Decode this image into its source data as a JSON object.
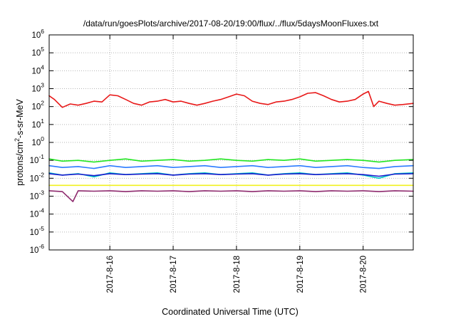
{
  "chart_data": {
    "type": "line",
    "title": "/data/run/goesPlots/archive/2017-08-20/19:00/flux/../flux/5daysMoonFluxes.txt",
    "xlabel": "Coordinated Universal Time (UTC)",
    "ylabel": "protons/cm²-s-sr-MeV",
    "ylabel_parts": {
      "pre": "protons/cm",
      "sup": "2",
      "post": "-s-sr-MeV"
    },
    "xlim": [
      "2017-08-15T01:00",
      "2017-08-20T19:00"
    ],
    "ylim": [
      1e-06,
      1000000.0
    ],
    "yscale": "log",
    "grid": true,
    "x_ticks": [
      {
        "date": "2017-08-16T00:00",
        "label": "2017-8-16"
      },
      {
        "date": "2017-08-17T00:00",
        "label": "2017-8-17"
      },
      {
        "date": "2017-08-18T00:00",
        "label": "2017-8-18"
      },
      {
        "date": "2017-08-19T00:00",
        "label": "2017-8-19"
      },
      {
        "date": "2017-08-20T00:00",
        "label": "2017-8-20"
      }
    ],
    "y_ticks": [
      {
        "exp": -6,
        "label": "10",
        "sup": "-6"
      },
      {
        "exp": -5,
        "label": "10",
        "sup": "-5"
      },
      {
        "exp": -4,
        "label": "10",
        "sup": "-4"
      },
      {
        "exp": -3,
        "label": "10",
        "sup": "-3"
      },
      {
        "exp": -2,
        "label": "10",
        "sup": "-2"
      },
      {
        "exp": -1,
        "label": "10",
        "sup": "-1"
      },
      {
        "exp": 0,
        "label": "10",
        "sup": "0"
      },
      {
        "exp": 1,
        "label": "10",
        "sup": "1"
      },
      {
        "exp": 2,
        "label": "10",
        "sup": "2"
      },
      {
        "exp": 3,
        "label": "10",
        "sup": "3"
      },
      {
        "exp": 4,
        "label": "10",
        "sup": "4"
      },
      {
        "exp": 5,
        "label": "10",
        "sup": "5"
      },
      {
        "exp": 6,
        "label": "10",
        "sup": "6"
      }
    ],
    "series": [
      {
        "color": "#e81919",
        "x": [
          "2017-08-15T01:00",
          "2017-08-15T03:00",
          "2017-08-15T06:00",
          "2017-08-15T09:00",
          "2017-08-15T12:00",
          "2017-08-15T15:00",
          "2017-08-15T18:00",
          "2017-08-15T21:00",
          "2017-08-16T00:00",
          "2017-08-16T03:00",
          "2017-08-16T06:00",
          "2017-08-16T09:00",
          "2017-08-16T12:00",
          "2017-08-16T15:00",
          "2017-08-16T18:00",
          "2017-08-16T21:00",
          "2017-08-17T00:00",
          "2017-08-17T03:00",
          "2017-08-17T06:00",
          "2017-08-17T09:00",
          "2017-08-17T12:00",
          "2017-08-17T15:00",
          "2017-08-17T18:00",
          "2017-08-17T21:00",
          "2017-08-18T00:00",
          "2017-08-18T03:00",
          "2017-08-18T06:00",
          "2017-08-18T09:00",
          "2017-08-18T12:00",
          "2017-08-18T15:00",
          "2017-08-18T18:00",
          "2017-08-18T21:00",
          "2017-08-19T00:00",
          "2017-08-19T03:00",
          "2017-08-19T06:00",
          "2017-08-19T09:00",
          "2017-08-19T12:00",
          "2017-08-19T15:00",
          "2017-08-19T18:00",
          "2017-08-19T21:00",
          "2017-08-20T00:00",
          "2017-08-20T02:00",
          "2017-08-20T04:00",
          "2017-08-20T06:00",
          "2017-08-20T09:00",
          "2017-08-20T12:00",
          "2017-08-20T15:00",
          "2017-08-20T19:00"
        ],
        "values": [
          400,
          250,
          90,
          140,
          120,
          150,
          200,
          180,
          450,
          400,
          250,
          150,
          120,
          180,
          200,
          250,
          180,
          200,
          150,
          120,
          150,
          200,
          250,
          350,
          500,
          400,
          200,
          150,
          130,
          180,
          200,
          250,
          350,
          550,
          600,
          400,
          250,
          180,
          200,
          250,
          500,
          700,
          100,
          200,
          150,
          120,
          130,
          150
        ]
      },
      {
        "color": "#22e622",
        "x": [
          "2017-08-15T01:00",
          "2017-08-15T06:00",
          "2017-08-15T12:00",
          "2017-08-15T18:00",
          "2017-08-16T00:00",
          "2017-08-16T06:00",
          "2017-08-16T12:00",
          "2017-08-16T18:00",
          "2017-08-17T00:00",
          "2017-08-17T06:00",
          "2017-08-17T12:00",
          "2017-08-17T18:00",
          "2017-08-18T00:00",
          "2017-08-18T06:00",
          "2017-08-18T12:00",
          "2017-08-18T18:00",
          "2017-08-19T00:00",
          "2017-08-19T06:00",
          "2017-08-19T12:00",
          "2017-08-19T18:00",
          "2017-08-20T00:00",
          "2017-08-20T06:00",
          "2017-08-20T12:00",
          "2017-08-20T19:00"
        ],
        "values": [
          0.12,
          0.09,
          0.1,
          0.08,
          0.1,
          0.12,
          0.09,
          0.1,
          0.11,
          0.09,
          0.1,
          0.12,
          0.1,
          0.09,
          0.11,
          0.1,
          0.12,
          0.09,
          0.1,
          0.11,
          0.1,
          0.08,
          0.1,
          0.11
        ]
      },
      {
        "color": "#2b7bff",
        "x": [
          "2017-08-15T01:00",
          "2017-08-15T06:00",
          "2017-08-15T12:00",
          "2017-08-15T18:00",
          "2017-08-16T00:00",
          "2017-08-16T06:00",
          "2017-08-16T12:00",
          "2017-08-16T18:00",
          "2017-08-17T00:00",
          "2017-08-17T06:00",
          "2017-08-17T12:00",
          "2017-08-17T18:00",
          "2017-08-18T00:00",
          "2017-08-18T06:00",
          "2017-08-18T12:00",
          "2017-08-18T18:00",
          "2017-08-19T00:00",
          "2017-08-19T06:00",
          "2017-08-19T12:00",
          "2017-08-19T18:00",
          "2017-08-20T00:00",
          "2017-08-20T06:00",
          "2017-08-20T12:00",
          "2017-08-20T19:00"
        ],
        "values": [
          0.05,
          0.04,
          0.045,
          0.035,
          0.05,
          0.04,
          0.045,
          0.05,
          0.04,
          0.045,
          0.05,
          0.04,
          0.045,
          0.05,
          0.04,
          0.045,
          0.05,
          0.04,
          0.045,
          0.05,
          0.04,
          0.035,
          0.045,
          0.05
        ]
      },
      {
        "color": "#00c8c8",
        "x": [
          "2017-08-15T01:00",
          "2017-08-15T06:00",
          "2017-08-15T12:00",
          "2017-08-15T18:00",
          "2017-08-16T00:00",
          "2017-08-16T06:00",
          "2017-08-16T12:00",
          "2017-08-16T18:00",
          "2017-08-17T00:00",
          "2017-08-17T06:00",
          "2017-08-17T12:00",
          "2017-08-17T18:00",
          "2017-08-18T00:00",
          "2017-08-18T06:00",
          "2017-08-18T12:00",
          "2017-08-18T18:00",
          "2017-08-19T00:00",
          "2017-08-19T06:00",
          "2017-08-19T12:00",
          "2017-08-19T18:00",
          "2017-08-20T00:00",
          "2017-08-20T06:00",
          "2017-08-20T12:00",
          "2017-08-20T19:00"
        ],
        "values": [
          0.02,
          0.015,
          0.018,
          0.012,
          0.02,
          0.016,
          0.018,
          0.02,
          0.015,
          0.018,
          0.02,
          0.016,
          0.018,
          0.02,
          0.015,
          0.018,
          0.02,
          0.016,
          0.018,
          0.02,
          0.015,
          0.01,
          0.018,
          0.02
        ]
      },
      {
        "color": "#1a1acc",
        "x": [
          "2017-08-15T01:00",
          "2017-08-15T06:00",
          "2017-08-15T12:00",
          "2017-08-15T18:00",
          "2017-08-16T00:00",
          "2017-08-16T06:00",
          "2017-08-16T12:00",
          "2017-08-16T18:00",
          "2017-08-17T00:00",
          "2017-08-17T06:00",
          "2017-08-17T12:00",
          "2017-08-17T18:00",
          "2017-08-18T00:00",
          "2017-08-18T06:00",
          "2017-08-18T12:00",
          "2017-08-18T18:00",
          "2017-08-19T00:00",
          "2017-08-19T06:00",
          "2017-08-19T12:00",
          "2017-08-19T18:00",
          "2017-08-20T00:00",
          "2017-08-20T06:00",
          "2017-08-20T12:00",
          "2017-08-20T19:00"
        ],
        "values": [
          0.018,
          0.015,
          0.017,
          0.014,
          0.018,
          0.016,
          0.017,
          0.018,
          0.015,
          0.017,
          0.018,
          0.016,
          0.017,
          0.018,
          0.015,
          0.017,
          0.018,
          0.016,
          0.017,
          0.018,
          0.016,
          0.013,
          0.017,
          0.018
        ]
      },
      {
        "color": "#f0f020",
        "x": [
          "2017-08-15T01:00",
          "2017-08-16T00:00",
          "2017-08-17T00:00",
          "2017-08-18T00:00",
          "2017-08-19T00:00",
          "2017-08-20T00:00",
          "2017-08-20T19:00"
        ],
        "values": [
          0.004,
          0.004,
          0.004,
          0.004,
          0.004,
          0.004,
          0.004
        ]
      },
      {
        "color": "#8e2a6e",
        "x": [
          "2017-08-15T01:00",
          "2017-08-15T06:00",
          "2017-08-15T10:00",
          "2017-08-15T12:00",
          "2017-08-15T18:00",
          "2017-08-16T00:00",
          "2017-08-16T06:00",
          "2017-08-16T12:00",
          "2017-08-16T18:00",
          "2017-08-17T00:00",
          "2017-08-17T06:00",
          "2017-08-17T12:00",
          "2017-08-17T18:00",
          "2017-08-18T00:00",
          "2017-08-18T06:00",
          "2017-08-18T12:00",
          "2017-08-18T18:00",
          "2017-08-19T00:00",
          "2017-08-19T06:00",
          "2017-08-19T12:00",
          "2017-08-19T18:00",
          "2017-08-20T00:00",
          "2017-08-20T06:00",
          "2017-08-20T12:00",
          "2017-08-20T19:00"
        ],
        "values": [
          0.002,
          0.0018,
          0.0005,
          0.002,
          0.0019,
          0.002,
          0.0018,
          0.002,
          0.0019,
          0.002,
          0.0018,
          0.002,
          0.0019,
          0.002,
          0.0018,
          0.002,
          0.0019,
          0.002,
          0.0018,
          0.002,
          0.0019,
          0.002,
          0.0018,
          0.002,
          0.0019
        ]
      }
    ]
  }
}
